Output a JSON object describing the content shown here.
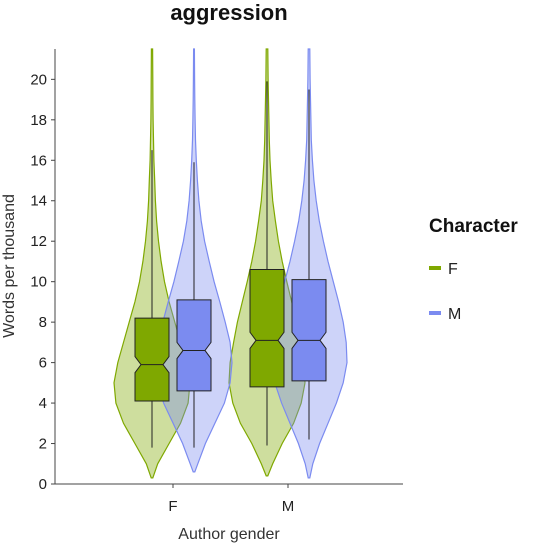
{
  "chart_data": {
    "type": "violin",
    "title": "aggression",
    "xlabel": "Author gender",
    "ylabel": "Words per thousand",
    "categories": [
      "F",
      "M"
    ],
    "ylim": [
      0,
      21.5
    ],
    "yticks": [
      0,
      2,
      4,
      6,
      8,
      10,
      12,
      14,
      16,
      18,
      20
    ],
    "grid": false,
    "legend": {
      "title": "Character",
      "position": "right"
    },
    "series": [
      {
        "name": "F",
        "color": "#7FA800",
        "groups": [
          {
            "category": "F",
            "box": {
              "q1": 4.1,
              "median": 5.9,
              "q3": 8.2,
              "whisker_low": 1.8,
              "whisker_high": 16.5,
              "notch_low": 5.5,
              "notch_high": 6.3
            },
            "violin": {
              "ymin": 0.3,
              "ymax": 21.5,
              "profile": [
                [
                  0.3,
                  0.02
                ],
                [
                  1,
                  0.15
                ],
                [
                  2,
                  0.45
                ],
                [
                  3,
                  0.75
                ],
                [
                  4,
                  0.95
                ],
                [
                  5,
                  1.0
                ],
                [
                  6,
                  0.9
                ],
                [
                  7,
                  0.75
                ],
                [
                  8,
                  0.6
                ],
                [
                  9,
                  0.45
                ],
                [
                  10,
                  0.33
                ],
                [
                  11,
                  0.24
                ],
                [
                  12,
                  0.17
                ],
                [
                  13,
                  0.12
                ],
                [
                  14,
                  0.09
                ],
                [
                  15,
                  0.07
                ],
                [
                  16,
                  0.05
                ],
                [
                  17,
                  0.04
                ],
                [
                  18,
                  0.03
                ],
                [
                  19,
                  0.025
                ],
                [
                  20,
                  0.02
                ],
                [
                  21.5,
                  0.015
                ]
              ]
            }
          },
          {
            "category": "M",
            "box": {
              "q1": 4.8,
              "median": 7.1,
              "q3": 10.6,
              "whisker_low": 1.9,
              "whisker_high": 19.9,
              "notch_low": 6.7,
              "notch_high": 7.5
            },
            "violin": {
              "ymin": 0.4,
              "ymax": 21.5,
              "profile": [
                [
                  0.4,
                  0.02
                ],
                [
                  1,
                  0.15
                ],
                [
                  2,
                  0.4
                ],
                [
                  3,
                  0.7
                ],
                [
                  4,
                  0.9
                ],
                [
                  5,
                  1.0
                ],
                [
                  6,
                  0.97
                ],
                [
                  7,
                  0.88
                ],
                [
                  8,
                  0.78
                ],
                [
                  9,
                  0.65
                ],
                [
                  10,
                  0.52
                ],
                [
                  11,
                  0.4
                ],
                [
                  12,
                  0.3
                ],
                [
                  13,
                  0.22
                ],
                [
                  14,
                  0.15
                ],
                [
                  15,
                  0.11
                ],
                [
                  16,
                  0.08
                ],
                [
                  17,
                  0.06
                ],
                [
                  18,
                  0.05
                ],
                [
                  19,
                  0.04
                ],
                [
                  20,
                  0.03
                ],
                [
                  21.5,
                  0.02
                ]
              ]
            }
          }
        ]
      },
      {
        "name": "M",
        "color": "#7B8BF0",
        "groups": [
          {
            "category": "F",
            "box": {
              "q1": 4.6,
              "median": 6.6,
              "q3": 9.1,
              "whisker_low": 1.8,
              "whisker_high": 15.9,
              "notch_low": 6.2,
              "notch_high": 7.0
            },
            "violin": {
              "ymin": 0.6,
              "ymax": 21.5,
              "profile": [
                [
                  0.6,
                  0.02
                ],
                [
                  1,
                  0.1
                ],
                [
                  2,
                  0.3
                ],
                [
                  3,
                  0.55
                ],
                [
                  4,
                  0.8
                ],
                [
                  5,
                  0.95
                ],
                [
                  6,
                  1.0
                ],
                [
                  7,
                  0.95
                ],
                [
                  8,
                  0.82
                ],
                [
                  9,
                  0.68
                ],
                [
                  10,
                  0.53
                ],
                [
                  11,
                  0.4
                ],
                [
                  12,
                  0.28
                ],
                [
                  13,
                  0.19
                ],
                [
                  14,
                  0.13
                ],
                [
                  15,
                  0.09
                ],
                [
                  16,
                  0.06
                ],
                [
                  17,
                  0.04
                ],
                [
                  18,
                  0.03
                ],
                [
                  19,
                  0.02
                ],
                [
                  20,
                  0.015
                ],
                [
                  21.5,
                  0.01
                ]
              ]
            }
          },
          {
            "category": "M",
            "box": {
              "q1": 5.1,
              "median": 7.1,
              "q3": 10.1,
              "whisker_low": 2.2,
              "whisker_high": 19.5,
              "notch_low": 6.7,
              "notch_high": 7.5
            },
            "violin": {
              "ymin": 0.3,
              "ymax": 21.5,
              "profile": [
                [
                  0.3,
                  0.02
                ],
                [
                  1,
                  0.1
                ],
                [
                  2,
                  0.28
                ],
                [
                  3,
                  0.5
                ],
                [
                  4,
                  0.72
                ],
                [
                  5,
                  0.9
                ],
                [
                  6,
                  1.0
                ],
                [
                  7,
                  0.98
                ],
                [
                  8,
                  0.9
                ],
                [
                  9,
                  0.78
                ],
                [
                  10,
                  0.64
                ],
                [
                  11,
                  0.5
                ],
                [
                  12,
                  0.38
                ],
                [
                  13,
                  0.27
                ],
                [
                  14,
                  0.19
                ],
                [
                  15,
                  0.13
                ],
                [
                  16,
                  0.09
                ],
                [
                  17,
                  0.06
                ],
                [
                  18,
                  0.05
                ],
                [
                  19,
                  0.04
                ],
                [
                  20,
                  0.03
                ],
                [
                  21.5,
                  0.02
                ]
              ]
            }
          }
        ]
      }
    ]
  }
}
